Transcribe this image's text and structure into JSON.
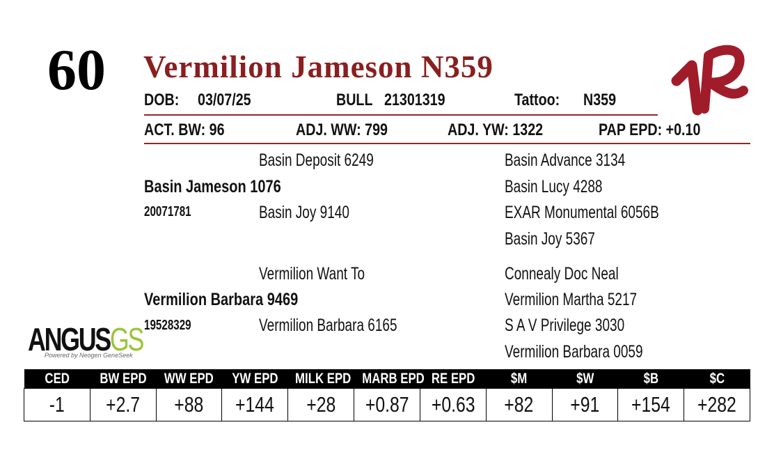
{
  "lot_number": "60",
  "title": "Vermilion Jameson N359",
  "info": {
    "dob_label": "DOB:",
    "dob": "03/07/25",
    "sex": "BULL",
    "registration": "21301319",
    "tattoo_label": "Tattoo:",
    "tattoo": "N359"
  },
  "measures": [
    {
      "label": "ACT. BW:",
      "value": "96"
    },
    {
      "label": "ADJ. WW:",
      "value": "799"
    },
    {
      "label": "ADJ. YW:",
      "value": "1322"
    },
    {
      "label": "PAP EPD:",
      "value": "+0.10"
    }
  ],
  "pedigree": {
    "sire": {
      "name": "Basin Jameson 1076",
      "registration": "20071781",
      "sire": "Basin Deposit 6249",
      "dam": "Basin Joy 9140",
      "sire_sire": "Basin Advance 3134",
      "sire_dam": "Basin Lucy 4288",
      "dam_sire": "EXAR Monumental 6056B",
      "dam_dam": "Basin Joy 5367"
    },
    "dam": {
      "name": "Vermilion Barbara 9469",
      "registration": "19528329",
      "sire": "Vermilion Want To",
      "dam": "Vermilion Barbara 6165",
      "sire_sire": "Connealy Doc Neal",
      "sire_dam": "Vermilion Martha 5217",
      "dam_sire": "S A V Privilege 3030",
      "dam_dam": "Vermilion Barbara 0059"
    }
  },
  "logo": {
    "word": "ANGUS",
    "suffix": "GS",
    "tagline": "Powered by Neogen GeneSeek"
  },
  "epd_table": {
    "headers": [
      "CED",
      "BW EPD",
      "WW EPD",
      "YW EPD",
      "MILK EPD",
      "MARB EPD",
      "RE EPD",
      "$M",
      "$W",
      "$B",
      "$C"
    ],
    "values": [
      "-1",
      "+2.7",
      "+88",
      "+144",
      "+28",
      "+0.87",
      "+0.63",
      "+82",
      "+91",
      "+154",
      "+282"
    ]
  }
}
